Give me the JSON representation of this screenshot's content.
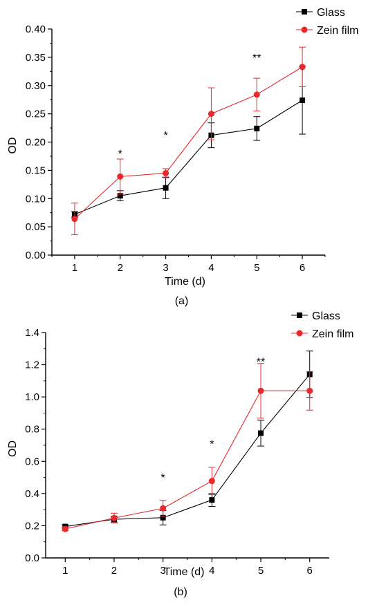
{
  "chart_data": [
    {
      "type": "line",
      "panel_label": "(a)",
      "xlabel": "Time (d)",
      "ylabel": "OD",
      "x": [
        1,
        2,
        3,
        4,
        5,
        6
      ],
      "xlim": [
        0.5,
        6.5
      ],
      "ylim": [
        0,
        0.4
      ],
      "xticks": [
        "1",
        "2",
        "3",
        "4",
        "5",
        "6"
      ],
      "yticks": [
        "0.00",
        "0.05",
        "0.10",
        "0.15",
        "0.20",
        "0.25",
        "0.30",
        "0.35",
        "0.40"
      ],
      "legend_position": "top-right",
      "grid": false,
      "series": [
        {
          "name": "Glass",
          "color": "#000000",
          "marker": "square",
          "values": [
            0.072,
            0.105,
            0.119,
            0.212,
            0.224,
            0.274
          ],
          "errors": [
            0.005,
            0.009,
            0.019,
            0.022,
            0.021,
            0.06
          ]
        },
        {
          "name": "Zein film",
          "color": "#e8282b",
          "marker": "circle",
          "values": [
            0.064,
            0.139,
            0.145,
            0.25,
            0.284,
            0.333
          ],
          "errors": [
            0.028,
            0.031,
            0.008,
            0.046,
            0.029,
            0.035
          ]
        }
      ],
      "annotations": [
        {
          "x": 2,
          "y": 0.183,
          "text": "*"
        },
        {
          "x": 3,
          "y": 0.215,
          "text": "*"
        },
        {
          "x": 5,
          "y": 0.352,
          "text": "**"
        }
      ]
    },
    {
      "type": "line",
      "panel_label": "(b)",
      "xlabel": "Time (d)",
      "ylabel": "OD",
      "x": [
        1,
        2,
        3,
        4,
        5,
        6
      ],
      "xlim": [
        0.6,
        6.4
      ],
      "ylim": [
        0,
        1.4
      ],
      "xticks": [
        "1",
        "2",
        "3",
        "4",
        "5",
        "6"
      ],
      "yticks": [
        "0.0",
        "0.2",
        "0.4",
        "0.6",
        "0.8",
        "1.0",
        "1.2",
        "1.4"
      ],
      "legend_position": "top-right",
      "grid": false,
      "series": [
        {
          "name": "Glass",
          "color": "#000000",
          "marker": "square",
          "values": [
            0.195,
            0.24,
            0.25,
            0.36,
            0.775,
            1.14
          ],
          "errors": [
            0.01,
            0.02,
            0.045,
            0.04,
            0.08,
            0.145
          ]
        },
        {
          "name": "Zein film",
          "color": "#e8282b",
          "marker": "circle",
          "values": [
            0.18,
            0.248,
            0.308,
            0.478,
            1.038,
            1.038
          ],
          "errors": [
            0.012,
            0.03,
            0.05,
            0.085,
            0.17,
            0.12
          ]
        }
      ],
      "annotations": [
        {
          "x": 3,
          "y": 0.51,
          "text": "*"
        },
        {
          "x": 4,
          "y": 0.72,
          "text": "*"
        },
        {
          "x": 5,
          "y": 1.23,
          "text": "**"
        }
      ]
    }
  ]
}
